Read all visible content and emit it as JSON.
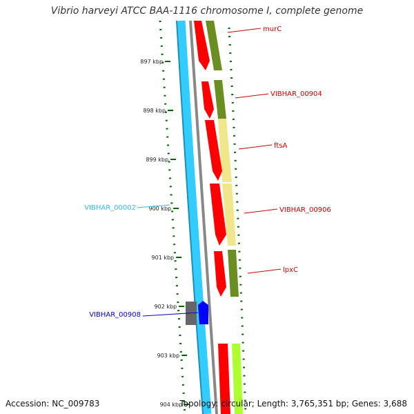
{
  "title": "Vibrio harveyi ATCC BAA-1116 chromosome I, complete genome",
  "accession": "Accession: NC_009783",
  "stats": "Topology: circular; Length: 3,765,351 bp; Genes: 3,688",
  "ticks": [
    {
      "label": "897 kbp",
      "kbp": 897
    },
    {
      "label": "898 kbp",
      "kbp": 898
    },
    {
      "label": "899 kbp",
      "kbp": 899
    },
    {
      "label": "900 kbp",
      "kbp": 900
    },
    {
      "label": "901 kbp",
      "kbp": 901
    },
    {
      "label": "902 kbp",
      "kbp": 902
    },
    {
      "label": "903 kbp",
      "kbp": 903
    },
    {
      "label": "904 kbp",
      "kbp": 904
    }
  ],
  "genes": [
    {
      "label": "murC",
      "color": "#cc0000",
      "start_kbp": 896.1,
      "end_kbp": 897.2
    },
    {
      "label": "VIBHAR_00904",
      "color": "#cc0000",
      "start_kbp": 897.4,
      "end_kbp": 898.1
    },
    {
      "label": "ftsA",
      "color": "#cc0000",
      "start_kbp": 898.2,
      "end_kbp": 899.5
    },
    {
      "label": "VIBHAR_00906",
      "color": "#cc0000",
      "start_kbp": 899.5,
      "end_kbp": 900.7
    },
    {
      "label": "lpxC",
      "color": "#cc0000",
      "start_kbp": 900.8,
      "end_kbp": 901.7
    },
    {
      "label": "VIBHAR_00908",
      "color": "#0000cc",
      "start_kbp": 902.0,
      "end_kbp": 902.3
    },
    {
      "label": "VIBHAR_00002",
      "color": "#33bbee"
    }
  ],
  "colors": {
    "gene_red": "#ff0000",
    "gene_blue": "#0000ff",
    "backbone_blue": "#33ccff",
    "backbone_grey": "#888888",
    "cog_olive": "#6b8e23",
    "cog_khaki": "#f0e68c",
    "cog_lime": "#adff2f",
    "tick_green": "#006400",
    "gray_block": "#666666"
  }
}
